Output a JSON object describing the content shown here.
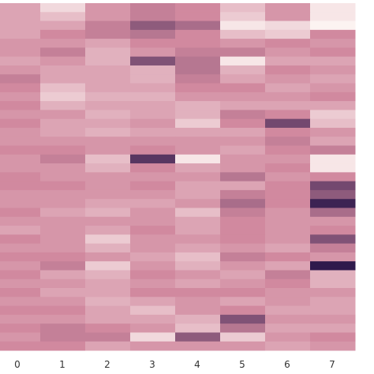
{
  "chart_data": {
    "type": "heatmap",
    "x_tick_labels": [
      "0",
      "1",
      "2",
      "3",
      "4",
      "5",
      "6",
      "7"
    ],
    "rows": 39,
    "color_scale": {
      "low": "#fcf3f1",
      "mid": "#d1899f",
      "high": "#2f1a4c"
    },
    "value_range": [
      0,
      1
    ],
    "values": [
      [
        0.3,
        0.1,
        0.35,
        0.45,
        0.4,
        0.2,
        0.35,
        0.05
      ],
      [
        0.3,
        0.2,
        0.35,
        0.45,
        0.4,
        0.15,
        0.35,
        0.05
      ],
      [
        0.3,
        0.3,
        0.45,
        0.65,
        0.55,
        0.05,
        0.1,
        0.0
      ],
      [
        0.3,
        0.4,
        0.45,
        0.5,
        0.4,
        0.2,
        0.15,
        0.4
      ],
      [
        0.35,
        0.35,
        0.3,
        0.4,
        0.4,
        0.35,
        0.4,
        0.35
      ],
      [
        0.35,
        0.45,
        0.25,
        0.35,
        0.45,
        0.45,
        0.35,
        0.4
      ],
      [
        0.3,
        0.35,
        0.25,
        0.7,
        0.5,
        0.05,
        0.3,
        0.3
      ],
      [
        0.35,
        0.3,
        0.3,
        0.25,
        0.5,
        0.25,
        0.4,
        0.35
      ],
      [
        0.45,
        0.3,
        0.3,
        0.25,
        0.45,
        0.3,
        0.35,
        0.3
      ],
      [
        0.4,
        0.2,
        0.3,
        0.3,
        0.4,
        0.4,
        0.3,
        0.35
      ],
      [
        0.35,
        0.15,
        0.25,
        0.25,
        0.35,
        0.35,
        0.35,
        0.4
      ],
      [
        0.4,
        0.25,
        0.3,
        0.3,
        0.25,
        0.3,
        0.3,
        0.3
      ],
      [
        0.35,
        0.35,
        0.25,
        0.3,
        0.25,
        0.45,
        0.4,
        0.15
      ],
      [
        0.4,
        0.3,
        0.3,
        0.35,
        0.15,
        0.4,
        0.75,
        0.2
      ],
      [
        0.35,
        0.3,
        0.25,
        0.3,
        0.3,
        0.3,
        0.4,
        0.35
      ],
      [
        0.35,
        0.35,
        0.35,
        0.35,
        0.35,
        0.35,
        0.45,
        0.3
      ],
      [
        0.4,
        0.4,
        0.35,
        0.4,
        0.35,
        0.3,
        0.4,
        0.45
      ],
      [
        0.35,
        0.45,
        0.2,
        0.85,
        0.05,
        0.35,
        0.35,
        0.05
      ],
      [
        0.35,
        0.35,
        0.25,
        0.4,
        0.3,
        0.35,
        0.4,
        0.05
      ],
      [
        0.4,
        0.35,
        0.35,
        0.35,
        0.35,
        0.5,
        0.35,
        0.4
      ],
      [
        0.4,
        0.4,
        0.35,
        0.4,
        0.3,
        0.3,
        0.4,
        0.75
      ],
      [
        0.35,
        0.35,
        0.35,
        0.35,
        0.3,
        0.45,
        0.4,
        0.65
      ],
      [
        0.35,
        0.35,
        0.3,
        0.3,
        0.35,
        0.55,
        0.4,
        0.95
      ],
      [
        0.4,
        0.3,
        0.25,
        0.35,
        0.2,
        0.45,
        0.35,
        0.55
      ],
      [
        0.35,
        0.35,
        0.35,
        0.35,
        0.3,
        0.4,
        0.35,
        0.35
      ],
      [
        0.3,
        0.35,
        0.3,
        0.4,
        0.3,
        0.4,
        0.35,
        0.4
      ],
      [
        0.4,
        0.35,
        0.15,
        0.35,
        0.35,
        0.4,
        0.35,
        0.7
      ],
      [
        0.35,
        0.35,
        0.25,
        0.35,
        0.3,
        0.35,
        0.3,
        0.45
      ],
      [
        0.4,
        0.4,
        0.35,
        0.3,
        0.2,
        0.45,
        0.4,
        0.35
      ],
      [
        0.35,
        0.45,
        0.15,
        0.35,
        0.25,
        0.35,
        0.3,
        1.0
      ],
      [
        0.4,
        0.3,
        0.25,
        0.4,
        0.35,
        0.3,
        0.45,
        0.25
      ],
      [
        0.35,
        0.35,
        0.3,
        0.35,
        0.3,
        0.35,
        0.4,
        0.25
      ],
      [
        0.4,
        0.3,
        0.3,
        0.4,
        0.4,
        0.4,
        0.35,
        0.35
      ],
      [
        0.35,
        0.35,
        0.25,
        0.3,
        0.35,
        0.3,
        0.35,
        0.3
      ],
      [
        0.4,
        0.4,
        0.3,
        0.2,
        0.35,
        0.4,
        0.3,
        0.3
      ],
      [
        0.35,
        0.35,
        0.3,
        0.3,
        0.25,
        0.7,
        0.35,
        0.35
      ],
      [
        0.4,
        0.45,
        0.4,
        0.35,
        0.2,
        0.5,
        0.3,
        0.3
      ],
      [
        0.35,
        0.45,
        0.45,
        0.1,
        0.65,
        0.15,
        0.35,
        0.4
      ],
      [
        0.4,
        0.4,
        0.3,
        0.35,
        0.35,
        0.35,
        0.3,
        0.35
      ]
    ]
  }
}
